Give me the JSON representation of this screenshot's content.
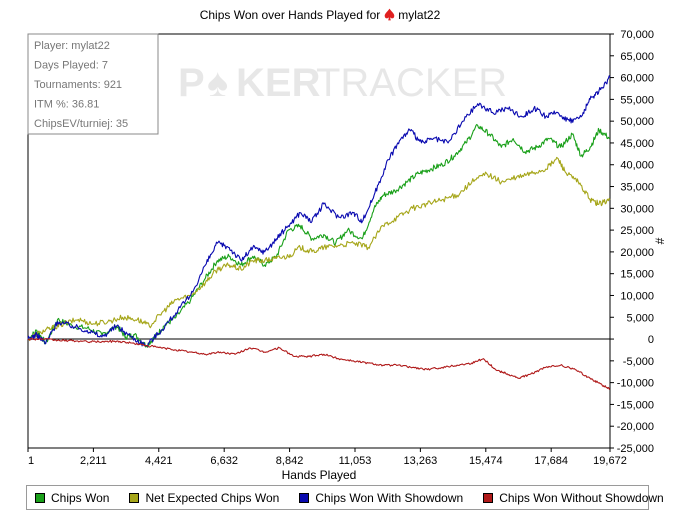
{
  "title": {
    "text": "Chips Won over Hands Played for",
    "player": "mylat22",
    "icon": "poker-spade-icon",
    "icon_color": "#e02020"
  },
  "watermark": {
    "left": "P",
    "pip": "♠",
    "right": "KER",
    "word2": "TRACKER"
  },
  "info_box": {
    "lines": [
      "Player: mylat22",
      "Days Played: 7",
      "Tournaments: 921",
      "ITM %: 36.81",
      "ChipsEV/turniej: 35"
    ]
  },
  "legend_entries": [
    "Chips Won",
    "Net Expected Chips Won",
    "Chips Won With Showdown",
    "Chips Won Without Showdown"
  ],
  "chart_data": {
    "type": "line",
    "xlabel": "Hands Played",
    "ylabel": "#",
    "xlim": [
      1,
      19672
    ],
    "ylim": [
      -25000,
      70000
    ],
    "x_ticks": [
      1,
      2211,
      4421,
      6632,
      8842,
      11053,
      13263,
      15474,
      17684,
      19672
    ],
    "x_tick_labels": [
      "1",
      "2,211",
      "4,421",
      "6,632",
      "8,842",
      "11,053",
      "13,263",
      "15,474",
      "17,684",
      "19,672"
    ],
    "y_ticks": [
      -25000,
      -20000,
      -15000,
      -10000,
      -5000,
      0,
      5000,
      10000,
      15000,
      20000,
      25000,
      30000,
      35000,
      40000,
      45000,
      50000,
      55000,
      60000,
      65000,
      70000
    ],
    "y_tick_labels": [
      "-25,000",
      "-20,000",
      "-15,000",
      "-10,000",
      "-5,000",
      "0",
      "5,000",
      "10,000",
      "15,000",
      "20,000",
      "25,000",
      "30,000",
      "35,000",
      "40,000",
      "45,000",
      "50,000",
      "55,000",
      "60,000",
      "65,000",
      "70,000"
    ],
    "y_axis_side": "right",
    "grid": false,
    "legend": "bottom",
    "series": [
      {
        "name": "Chips Won",
        "color": "#1aa01a",
        "points": [
          [
            1,
            0
          ],
          [
            300,
            2000
          ],
          [
            600,
            -1000
          ],
          [
            1000,
            4500
          ],
          [
            1500,
            3000
          ],
          [
            2000,
            2500
          ],
          [
            2500,
            1000
          ],
          [
            3000,
            3000
          ],
          [
            3300,
            500
          ],
          [
            3600,
            1000
          ],
          [
            4000,
            -1500
          ],
          [
            4300,
            500
          ],
          [
            4600,
            3000
          ],
          [
            5000,
            5000
          ],
          [
            5500,
            9000
          ],
          [
            6000,
            14000
          ],
          [
            6400,
            18000
          ],
          [
            6800,
            19000
          ],
          [
            7200,
            17000
          ],
          [
            7600,
            19000
          ],
          [
            8000,
            17000
          ],
          [
            8400,
            19000
          ],
          [
            8800,
            25000
          ],
          [
            9200,
            26000
          ],
          [
            9600,
            23000
          ],
          [
            10000,
            24000
          ],
          [
            10400,
            22000
          ],
          [
            10800,
            25000
          ],
          [
            11300,
            23000
          ],
          [
            11700,
            30000
          ],
          [
            12000,
            33000
          ],
          [
            12400,
            34000
          ],
          [
            12800,
            36000
          ],
          [
            13200,
            38000
          ],
          [
            13600,
            39000
          ],
          [
            14000,
            40000
          ],
          [
            14400,
            42000
          ],
          [
            14800,
            45000
          ],
          [
            15200,
            49000
          ],
          [
            15600,
            47000
          ],
          [
            16000,
            44000
          ],
          [
            16400,
            46000
          ],
          [
            16800,
            43000
          ],
          [
            17200,
            44000
          ],
          [
            17600,
            46000
          ],
          [
            18000,
            44000
          ],
          [
            18400,
            47000
          ],
          [
            18700,
            42000
          ],
          [
            19000,
            44000
          ],
          [
            19300,
            48000
          ],
          [
            19672,
            46000
          ]
        ]
      },
      {
        "name": "Net Expected Chips Won",
        "color": "#a6a61a",
        "points": [
          [
            1,
            0
          ],
          [
            400,
            1500
          ],
          [
            800,
            2500
          ],
          [
            1200,
            3500
          ],
          [
            1700,
            4500
          ],
          [
            2200,
            3500
          ],
          [
            2700,
            4000
          ],
          [
            3200,
            5000
          ],
          [
            3700,
            4500
          ],
          [
            4100,
            3000
          ],
          [
            4600,
            6500
          ],
          [
            5000,
            9000
          ],
          [
            5500,
            10000
          ],
          [
            6000,
            13000
          ],
          [
            6400,
            16000
          ],
          [
            6800,
            17000
          ],
          [
            7200,
            16000
          ],
          [
            7600,
            18000
          ],
          [
            8000,
            18000
          ],
          [
            8400,
            18500
          ],
          [
            8800,
            19000
          ],
          [
            9200,
            21000
          ],
          [
            9600,
            20000
          ],
          [
            10000,
            21000
          ],
          [
            10500,
            21500
          ],
          [
            11000,
            22000
          ],
          [
            11500,
            21000
          ],
          [
            12000,
            26000
          ],
          [
            12500,
            28000
          ],
          [
            13000,
            30000
          ],
          [
            13500,
            31000
          ],
          [
            14000,
            32000
          ],
          [
            14500,
            33000
          ],
          [
            15000,
            36000
          ],
          [
            15500,
            38000
          ],
          [
            16000,
            36000
          ],
          [
            16500,
            37000
          ],
          [
            17000,
            38000
          ],
          [
            17500,
            39000
          ],
          [
            17900,
            41500
          ],
          [
            18200,
            38000
          ],
          [
            18600,
            36000
          ],
          [
            19000,
            32000
          ],
          [
            19300,
            31000
          ],
          [
            19672,
            32000
          ]
        ]
      },
      {
        "name": "Chips Won With Showdown",
        "color": "#0a0ab0",
        "points": [
          [
            1,
            0
          ],
          [
            300,
            1000
          ],
          [
            600,
            -1000
          ],
          [
            1000,
            4000
          ],
          [
            1500,
            3000
          ],
          [
            2000,
            2000
          ],
          [
            2500,
            500
          ],
          [
            3000,
            3000
          ],
          [
            3500,
            500
          ],
          [
            4000,
            -1500
          ],
          [
            4500,
            2000
          ],
          [
            5000,
            6000
          ],
          [
            5500,
            10000
          ],
          [
            6000,
            17000
          ],
          [
            6400,
            22000
          ],
          [
            6800,
            21000
          ],
          [
            7200,
            18000
          ],
          [
            7600,
            21000
          ],
          [
            8000,
            20000
          ],
          [
            8400,
            23000
          ],
          [
            8800,
            26000
          ],
          [
            9200,
            29000
          ],
          [
            9600,
            27000
          ],
          [
            10000,
            31000
          ],
          [
            10500,
            28000
          ],
          [
            11000,
            29000
          ],
          [
            11300,
            27000
          ],
          [
            11700,
            33000
          ],
          [
            12100,
            40000
          ],
          [
            12500,
            45000
          ],
          [
            12900,
            48000
          ],
          [
            13300,
            45000
          ],
          [
            13700,
            46000
          ],
          [
            14200,
            45000
          ],
          [
            14700,
            50000
          ],
          [
            15200,
            54000
          ],
          [
            15700,
            52000
          ],
          [
            16200,
            53000
          ],
          [
            16700,
            51000
          ],
          [
            17100,
            53000
          ],
          [
            17500,
            51000
          ],
          [
            17900,
            52000
          ],
          [
            18300,
            50000
          ],
          [
            18700,
            51000
          ],
          [
            19000,
            55000
          ],
          [
            19300,
            57000
          ],
          [
            19672,
            60000
          ]
        ]
      },
      {
        "name": "Chips Won Without Showdown",
        "color": "#b01a1a",
        "points": [
          [
            1,
            0
          ],
          [
            500,
            0
          ],
          [
            1000,
            -300
          ],
          [
            1500,
            -400
          ],
          [
            2000,
            -600
          ],
          [
            2500,
            -600
          ],
          [
            3000,
            -500
          ],
          [
            3500,
            -900
          ],
          [
            4000,
            -1500
          ],
          [
            4500,
            -2000
          ],
          [
            5000,
            -2500
          ],
          [
            5500,
            -3000
          ],
          [
            6000,
            -3500
          ],
          [
            6500,
            -3000
          ],
          [
            7000,
            -3500
          ],
          [
            7500,
            -2000
          ],
          [
            8000,
            -3000
          ],
          [
            8500,
            -2000
          ],
          [
            9000,
            -4000
          ],
          [
            9500,
            -4000
          ],
          [
            10000,
            -3500
          ],
          [
            10500,
            -4500
          ],
          [
            11000,
            -5000
          ],
          [
            11500,
            -5500
          ],
          [
            12000,
            -6000
          ],
          [
            12500,
            -6000
          ],
          [
            13000,
            -6500
          ],
          [
            13500,
            -7000
          ],
          [
            14000,
            -6500
          ],
          [
            14500,
            -6000
          ],
          [
            15000,
            -5500
          ],
          [
            15400,
            -4500
          ],
          [
            15800,
            -7000
          ],
          [
            16200,
            -8000
          ],
          [
            16600,
            -9000
          ],
          [
            17000,
            -8000
          ],
          [
            17500,
            -6500
          ],
          [
            18000,
            -6000
          ],
          [
            18500,
            -7000
          ],
          [
            19000,
            -9000
          ],
          [
            19400,
            -10500
          ],
          [
            19672,
            -11500
          ]
        ]
      }
    ]
  }
}
